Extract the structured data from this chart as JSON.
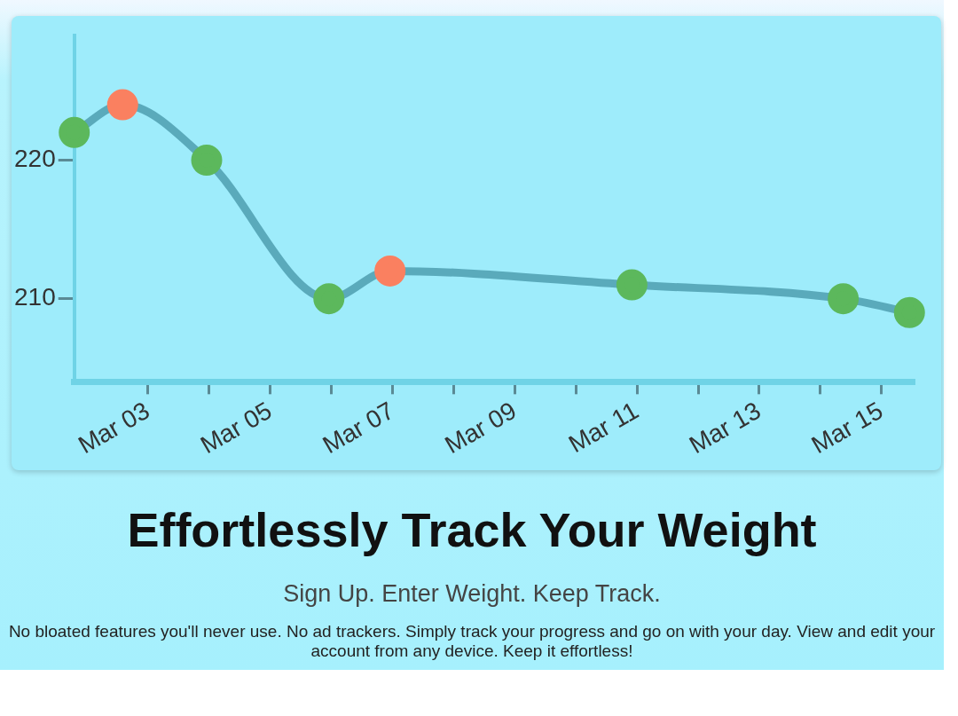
{
  "chart_data": {
    "type": "line",
    "title": "Effortlessly Track Your Weight",
    "subtitle": "Sign Up. Enter Weight. Keep Track.",
    "annotations": [
      "No bloated features you'll never use. No ad trackers. Simply track your progress and go on with your day. View and edit your account from any device. Keep it effortless!"
    ],
    "x": [
      "--03-01T19:00",
      "--03-02T14:00",
      "--03-03T23:00",
      "--03-05T23:00",
      "--03-06T23:00",
      "--03-10T22:00",
      "--03-14T09:00",
      "--03-15T11:00"
    ],
    "series": [
      {
        "color": "#5aaabb",
        "values": [
          222,
          224,
          220,
          210,
          212,
          211,
          210,
          209
        ],
        "colors": [
          "#5cb85c",
          "#fa8060",
          "#5cb85c",
          "#5cb85c",
          "#fa8060",
          "#5cb85c",
          "#5cb85c",
          "#5cb85c"
        ]
      }
    ],
    "xlim": [
      "--03-01T19:00",
      "--03-15T13:00"
    ],
    "xticks": [
      {
        "value": "--03-03",
        "label": "Mar 03"
      },
      {
        "value": "--03-04",
        "label": null
      },
      {
        "value": "--03-05",
        "label": "Mar 05"
      },
      {
        "value": "--03-06",
        "label": null
      },
      {
        "value": "--03-07",
        "label": "Mar 07"
      },
      {
        "value": "--03-08",
        "label": null
      },
      {
        "value": "--03-09",
        "label": "Mar 09"
      },
      {
        "value": "--03-10",
        "label": null
      },
      {
        "value": "--03-11",
        "label": "Mar 11"
      },
      {
        "value": "--03-12",
        "label": null
      },
      {
        "value": "--03-13",
        "label": "Mar 13"
      },
      {
        "value": "--03-14",
        "label": null
      },
      {
        "value": "--03-15",
        "label": "Mar 15"
      }
    ],
    "ylim": [
      204,
      229
    ],
    "yticks": [
      210,
      220
    ],
    "grid": false,
    "legend": false,
    "marker": "circle",
    "line_style": "solid"
  }
}
